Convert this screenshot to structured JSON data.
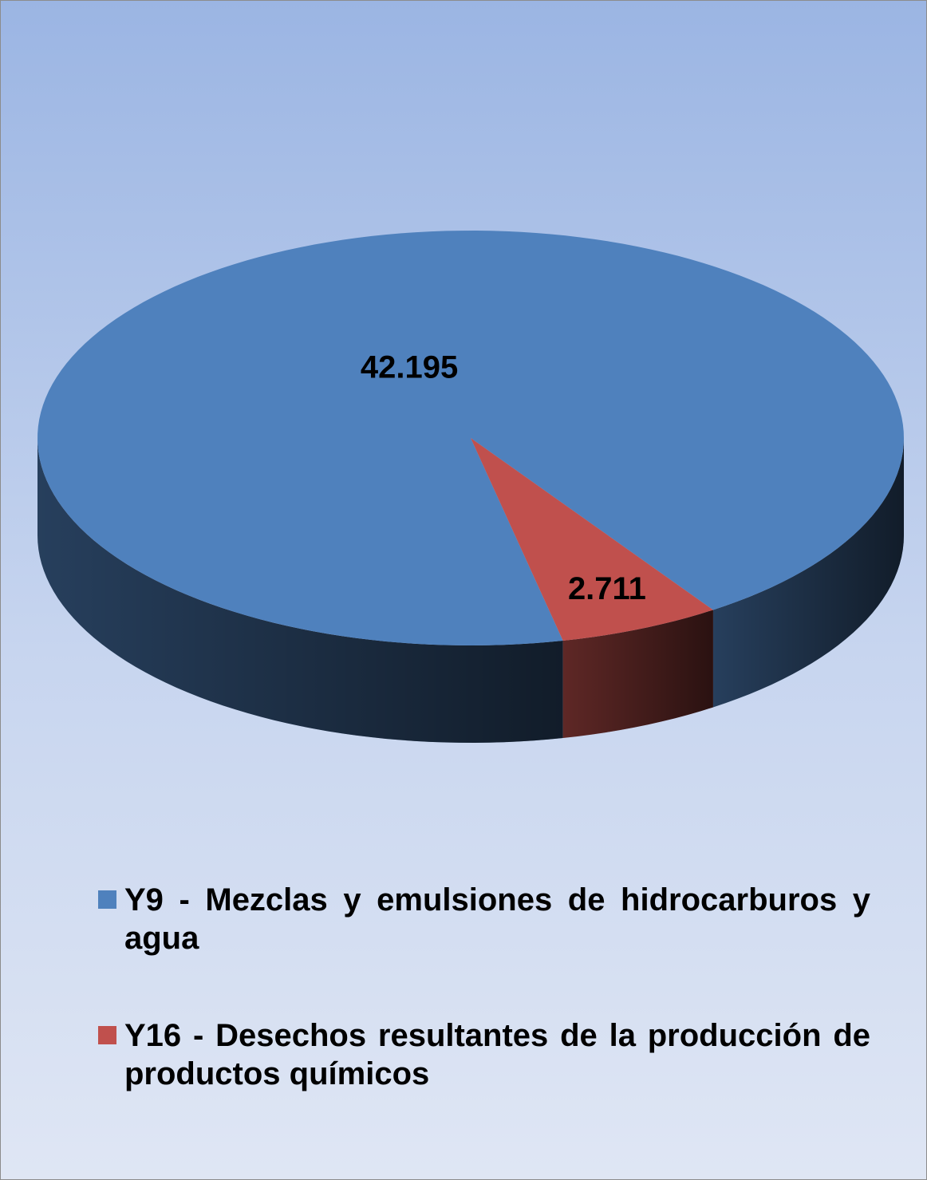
{
  "chart_data": {
    "type": "pie3d",
    "categories": [
      "Y9 - Mezclas y emulsiones de hidrocarburos y agua",
      "Y16 - Desechos resultantes de la producción de productos químicos"
    ],
    "values": [
      42195,
      2711
    ],
    "value_labels": [
      "42.195",
      "2.711"
    ],
    "colors": [
      "#4f81bd",
      "#c0504d"
    ],
    "legend": "bottom"
  }
}
